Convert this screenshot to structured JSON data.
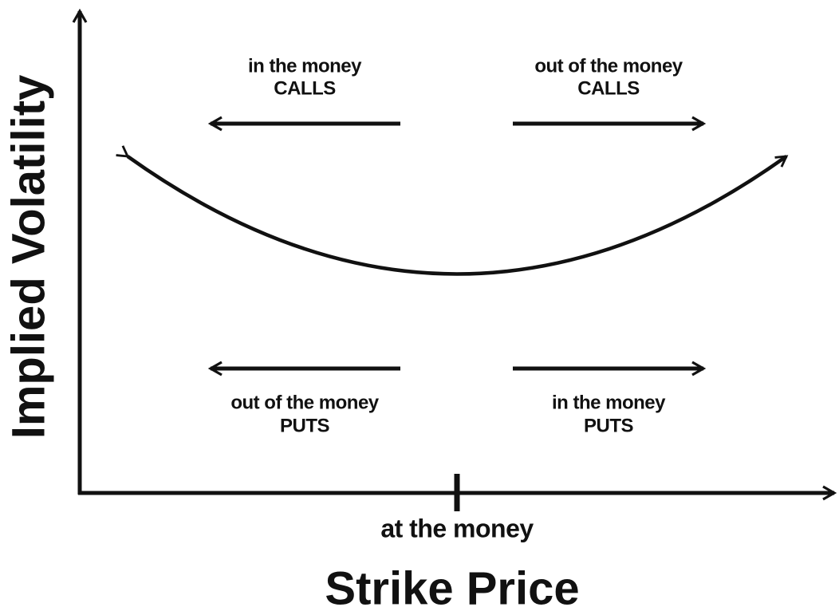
{
  "axes": {
    "y_label": "Implied Volatility",
    "x_label": "Strike Price",
    "x_tick_label": "at the money"
  },
  "regions": [
    {
      "moneyness": "in the money",
      "option": "CALLS"
    },
    {
      "moneyness": "out of the money",
      "option": "CALLS"
    },
    {
      "moneyness": "out of the money",
      "option": "PUTS"
    },
    {
      "moneyness": "in the money",
      "option": "PUTS"
    }
  ]
}
